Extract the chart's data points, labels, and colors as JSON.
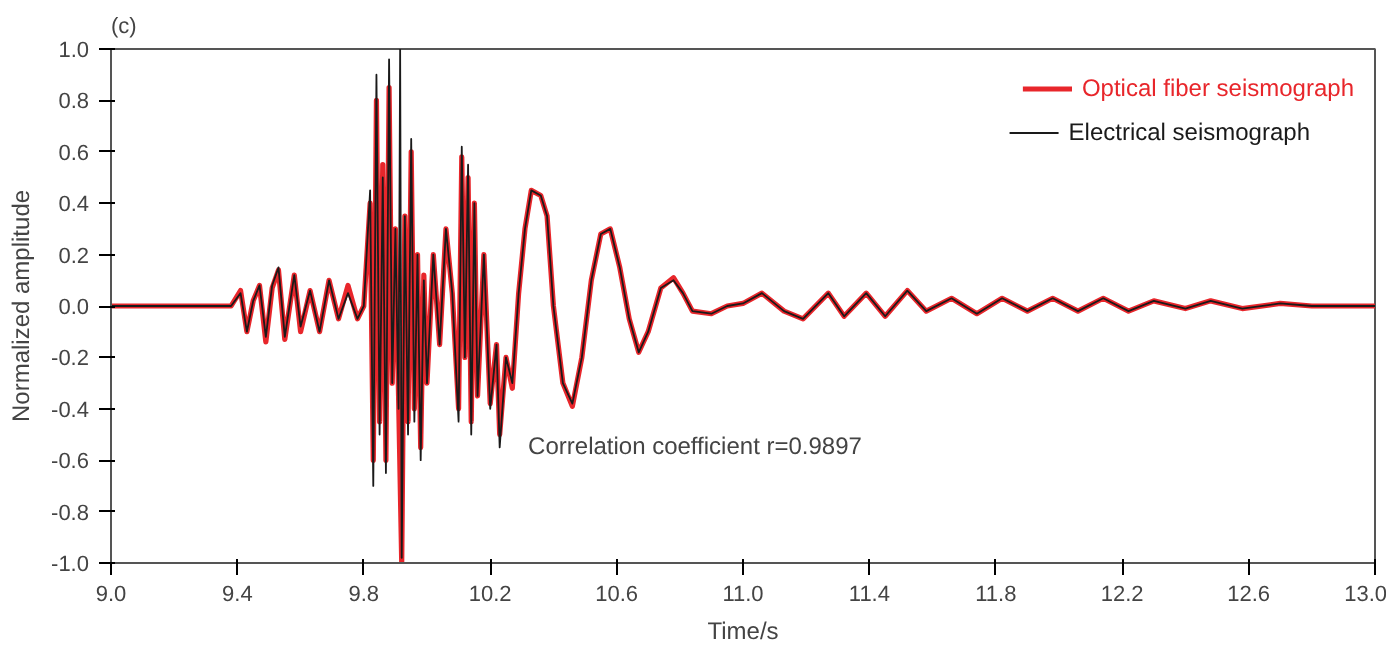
{
  "chart_data": {
    "type": "line",
    "title": "(c)",
    "xlabel": "Time/s",
    "ylabel": "Normalized amplitude",
    "xlim": [
      9.0,
      13.0
    ],
    "ylim": [
      -1.0,
      1.0
    ],
    "xticks": [
      {
        "value": 9.0,
        "label": "9.0"
      },
      {
        "value": 9.4,
        "label": "9.4"
      },
      {
        "value": 9.8,
        "label": "9.8"
      },
      {
        "value": 10.2,
        "label": "10.2"
      },
      {
        "value": 10.6,
        "label": "10.6"
      },
      {
        "value": 11.0,
        "label": "11.0"
      },
      {
        "value": 11.4,
        "label": "11.4"
      },
      {
        "value": 11.8,
        "label": "11.8"
      },
      {
        "value": 12.2,
        "label": "12.2"
      },
      {
        "value": 12.6,
        "label": "12.6"
      },
      {
        "value": 13.0,
        "label": "13.0"
      }
    ],
    "yticks": [
      {
        "value": -1.0,
        "label": "-1.0"
      },
      {
        "value": -0.8,
        "label": "-0.8"
      },
      {
        "value": -0.6,
        "label": "-0.6"
      },
      {
        "value": -0.4,
        "label": "-0.4"
      },
      {
        "value": -0.2,
        "label": "-0.2"
      },
      {
        "value": 0,
        "label": "0.0"
      },
      {
        "value": 0.2,
        "label": "0.2"
      },
      {
        "value": 0.4,
        "label": "0.4"
      },
      {
        "value": 0.6,
        "label": "0.6"
      },
      {
        "value": 0.8,
        "label": "0.8"
      },
      {
        "value": 1.0,
        "label": "1.0"
      }
    ],
    "grid": false,
    "legend": "top right",
    "marker": "none",
    "line_style": "solid",
    "annotations": [
      "Correlation coefficient r=0.9897"
    ],
    "series": [
      {
        "name": "Optical fiber seismograph",
        "color": "#e8262b",
        "x": [
          9.0,
          9.38,
          9.41,
          9.43,
          9.45,
          9.47,
          9.49,
          9.51,
          9.53,
          9.55,
          9.58,
          9.6,
          9.63,
          9.66,
          9.69,
          9.72,
          9.75,
          9.78,
          9.8,
          9.82,
          9.83,
          9.84,
          9.85,
          9.86,
          9.87,
          9.88,
          9.89,
          9.9,
          9.91,
          9.92,
          9.93,
          9.94,
          9.95,
          9.96,
          9.97,
          9.98,
          9.99,
          10.0,
          10.02,
          10.04,
          10.06,
          10.08,
          10.1,
          10.11,
          10.12,
          10.13,
          10.14,
          10.15,
          10.16,
          10.18,
          10.2,
          10.22,
          10.23,
          10.25,
          10.27,
          10.29,
          10.31,
          10.33,
          10.36,
          10.38,
          10.4,
          10.43,
          10.46,
          10.49,
          10.52,
          10.55,
          10.58,
          10.61,
          10.64,
          10.67,
          10.7,
          10.74,
          10.78,
          10.81,
          10.84,
          10.9,
          10.95,
          11.0,
          11.06,
          11.13,
          11.19,
          11.27,
          11.32,
          11.39,
          11.45,
          11.52,
          11.58,
          11.66,
          11.74,
          11.82,
          11.9,
          11.98,
          12.06,
          12.14,
          12.22,
          12.3,
          12.4,
          12.48,
          12.58,
          12.7,
          12.8,
          13.0
        ],
        "values": [
          0,
          0,
          0.06,
          -0.1,
          0.02,
          0.08,
          -0.14,
          0.07,
          0.14,
          -0.13,
          0.12,
          -0.1,
          0.06,
          -0.1,
          0.1,
          -0.05,
          0.08,
          -0.05,
          0,
          0.4,
          -0.6,
          0.8,
          -0.45,
          0.55,
          -0.6,
          0.85,
          -0.3,
          0.3,
          -0.35,
          -1.0,
          0.35,
          -0.45,
          0.6,
          -0.4,
          0.2,
          -0.55,
          0.12,
          -0.3,
          0.2,
          -0.15,
          0.3,
          0.05,
          -0.4,
          0.58,
          -0.2,
          0.5,
          -0.45,
          0.4,
          -0.35,
          0.2,
          -0.38,
          -0.15,
          -0.5,
          -0.2,
          -0.32,
          0.05,
          0.3,
          0.45,
          0.43,
          0.35,
          0,
          -0.3,
          -0.39,
          -0.2,
          0.1,
          0.28,
          0.3,
          0.15,
          -0.05,
          -0.18,
          -0.1,
          0.07,
          0.11,
          0.05,
          -0.02,
          -0.03,
          0,
          0.01,
          0.05,
          -0.02,
          -0.05,
          0.05,
          -0.04,
          0.05,
          -0.04,
          0.06,
          -0.02,
          0.03,
          -0.03,
          0.03,
          -0.02,
          0.03,
          -0.02,
          0.03,
          -0.02,
          0.02,
          -0.01,
          0.02,
          -0.01,
          0.01,
          0,
          0
        ]
      },
      {
        "name": "Electrical seismograph",
        "color": "#1a1a1a",
        "x": [
          9.0,
          9.38,
          9.41,
          9.43,
          9.45,
          9.47,
          9.49,
          9.51,
          9.53,
          9.55,
          9.58,
          9.6,
          9.63,
          9.66,
          9.69,
          9.72,
          9.75,
          9.78,
          9.8,
          9.82,
          9.83,
          9.84,
          9.85,
          9.86,
          9.87,
          9.88,
          9.89,
          9.9,
          9.91,
          9.915,
          9.92,
          9.93,
          9.94,
          9.95,
          9.96,
          9.97,
          9.98,
          9.99,
          10.0,
          10.02,
          10.04,
          10.06,
          10.08,
          10.1,
          10.11,
          10.12,
          10.13,
          10.14,
          10.15,
          10.16,
          10.18,
          10.2,
          10.22,
          10.23,
          10.25,
          10.27,
          10.29,
          10.31,
          10.33,
          10.36,
          10.38,
          10.4,
          10.43,
          10.46,
          10.49,
          10.52,
          10.55,
          10.58,
          10.61,
          10.64,
          10.67,
          10.7,
          10.74,
          10.78,
          10.81,
          10.84,
          10.9,
          10.95,
          11.0,
          11.06,
          11.13,
          11.19,
          11.27,
          11.32,
          11.39,
          11.45,
          11.52,
          11.58,
          11.66,
          11.74,
          11.82,
          11.9,
          11.98,
          12.06,
          12.14,
          12.22,
          12.3,
          12.4,
          12.48,
          12.58,
          12.7,
          12.8,
          13.0
        ],
        "values": [
          0,
          0,
          0.05,
          -0.1,
          0.02,
          0.08,
          -0.12,
          0.08,
          0.15,
          -0.12,
          0.12,
          -0.08,
          0.06,
          -0.1,
          0.1,
          -0.05,
          0.05,
          -0.05,
          0,
          0.45,
          -0.7,
          0.9,
          -0.5,
          0.5,
          -0.65,
          0.96,
          -0.3,
          0.3,
          -0.4,
          1.0,
          -0.98,
          0.35,
          -0.5,
          0.65,
          -0.45,
          0.2,
          -0.6,
          0.1,
          -0.3,
          0.2,
          -0.15,
          0.3,
          0.05,
          -0.45,
          0.62,
          -0.2,
          0.55,
          -0.5,
          0.4,
          -0.35,
          0.2,
          -0.4,
          -0.15,
          -0.55,
          -0.2,
          -0.3,
          0.05,
          0.3,
          0.45,
          0.43,
          0.35,
          0,
          -0.3,
          -0.38,
          -0.2,
          0.1,
          0.28,
          0.3,
          0.15,
          -0.05,
          -0.18,
          -0.1,
          0.07,
          0.1,
          0.05,
          -0.02,
          -0.03,
          0,
          0.01,
          0.05,
          -0.02,
          -0.05,
          0.05,
          -0.04,
          0.05,
          -0.04,
          0.06,
          -0.02,
          0.03,
          -0.03,
          0.03,
          -0.02,
          0.03,
          -0.02,
          0.03,
          -0.02,
          0.02,
          -0.01,
          0.02,
          -0.01,
          0.01,
          0,
          0
        ]
      }
    ]
  }
}
